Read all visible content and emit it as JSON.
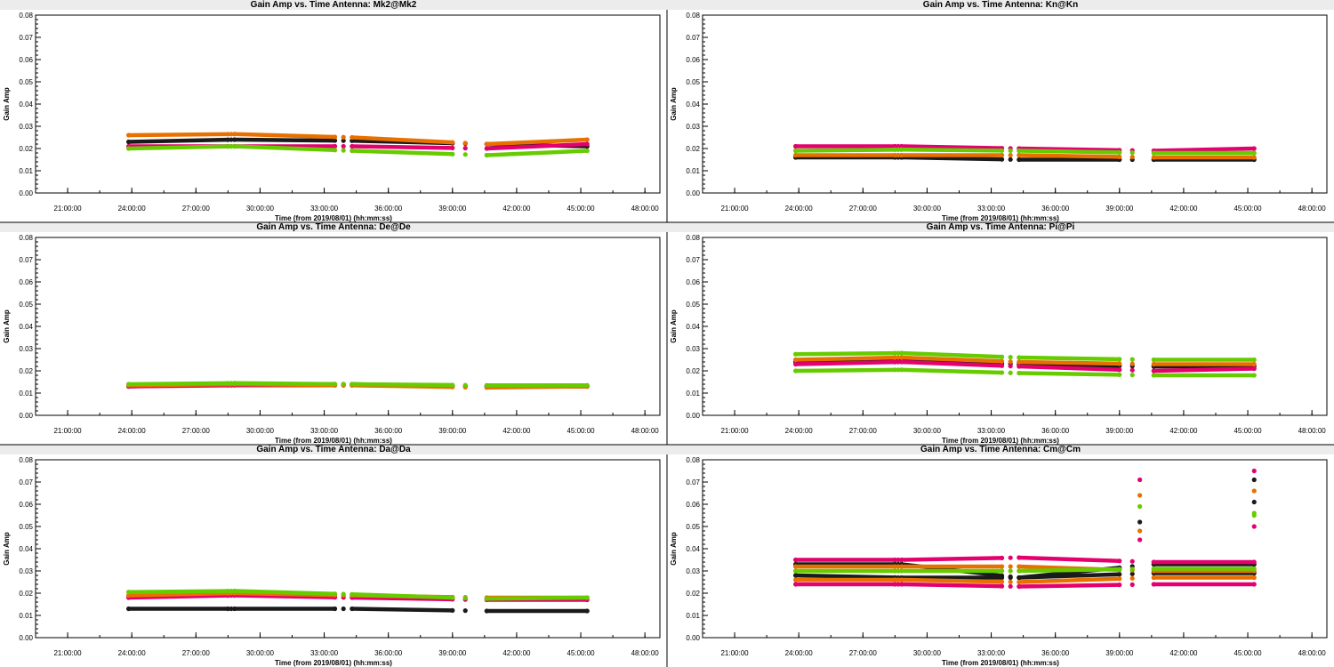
{
  "chart_data": [
    {
      "type": "scatter",
      "title": "Gain Amp vs. Time Antenna: Mk2@Mk2",
      "xlabel": "Time (from 2019/08/01) (hh:mm:ss)",
      "ylabel": "Gain Amp",
      "xlim_hours": [
        19.5,
        48.7
      ],
      "ylim": [
        0,
        0.08
      ],
      "xticks": [
        "21:00:00",
        "24:00:00",
        "27:00:00",
        "30:00:00",
        "33:00:00",
        "36:00:00",
        "39:00:00",
        "42:00:00",
        "45:00:00",
        "48:00:00"
      ],
      "yticks": [
        "0.00",
        "0.01",
        "0.02",
        "0.03",
        "0.04",
        "0.05",
        "0.06",
        "0.07",
        "0.08"
      ],
      "grid": false,
      "segments_hours": [
        [
          23.85,
          28.5
        ],
        [
          28.8,
          33.5
        ],
        [
          34.3,
          39.0
        ],
        [
          40.6,
          45.3
        ]
      ],
      "series": [
        {
          "color": "#1a1a1a",
          "values": [
            0.023,
            0.024,
            0.0235,
            0.022,
            0.021
          ]
        },
        {
          "color": "#e4006e",
          "values": [
            0.021,
            0.021,
            0.021,
            0.02,
            0.022
          ]
        },
        {
          "color": "#e87000",
          "values": [
            0.026,
            0.0265,
            0.025,
            0.022,
            0.024
          ]
        },
        {
          "color": "#66cc00",
          "values": [
            0.02,
            0.021,
            0.019,
            0.017,
            0.019
          ]
        }
      ]
    },
    {
      "type": "scatter",
      "title": "Gain Amp vs. Time Antenna: Kn@Kn",
      "xlabel": "Time (from 2019/08/01) (hh:mm:ss)",
      "ylabel": "Gain Amp",
      "xlim_hours": [
        19.5,
        48.7
      ],
      "ylim": [
        0,
        0.08
      ],
      "xticks": [
        "21:00:00",
        "24:00:00",
        "27:00:00",
        "30:00:00",
        "33:00:00",
        "36:00:00",
        "39:00:00",
        "42:00:00",
        "45:00:00",
        "48:00:00"
      ],
      "yticks": [
        "0.00",
        "0.01",
        "0.02",
        "0.03",
        "0.04",
        "0.05",
        "0.06",
        "0.07",
        "0.08"
      ],
      "grid": false,
      "segments_hours": [
        [
          23.85,
          28.5
        ],
        [
          28.8,
          33.5
        ],
        [
          34.3,
          39.0
        ],
        [
          40.6,
          45.3
        ]
      ],
      "series": [
        {
          "color": "#1a1a1a",
          "values": [
            0.016,
            0.016,
            0.015,
            0.015,
            0.015
          ]
        },
        {
          "color": "#e4006e",
          "values": [
            0.021,
            0.021,
            0.02,
            0.019,
            0.02
          ]
        },
        {
          "color": "#e87000",
          "values": [
            0.017,
            0.017,
            0.017,
            0.016,
            0.016
          ]
        },
        {
          "color": "#66cc00",
          "values": [
            0.019,
            0.0195,
            0.019,
            0.018,
            0.018
          ]
        }
      ]
    },
    {
      "type": "scatter",
      "title": "Gain Amp vs. Time Antenna: De@De",
      "xlabel": "Time (from 2019/08/01) (hh:mm:ss)",
      "ylabel": "Gain Amp",
      "xlim_hours": [
        19.5,
        48.7
      ],
      "ylim": [
        0,
        0.08
      ],
      "xticks": [
        "21:00:00",
        "24:00:00",
        "27:00:00",
        "30:00:00",
        "33:00:00",
        "36:00:00",
        "39:00:00",
        "42:00:00",
        "45:00:00",
        "48:00:00"
      ],
      "yticks": [
        "0.00",
        "0.01",
        "0.02",
        "0.03",
        "0.04",
        "0.05",
        "0.06",
        "0.07",
        "0.08"
      ],
      "grid": false,
      "segments_hours": [
        [
          23.85,
          28.5
        ],
        [
          28.8,
          33.5
        ],
        [
          34.3,
          39.0
        ],
        [
          40.6,
          45.3
        ]
      ],
      "series": [
        {
          "color": "#1a1a1a",
          "values": [
            0.013,
            0.014,
            0.014,
            0.013,
            0.013
          ]
        },
        {
          "color": "#e4006e",
          "values": [
            0.013,
            0.0135,
            0.0135,
            0.013,
            0.013
          ]
        },
        {
          "color": "#e87000",
          "values": [
            0.0135,
            0.014,
            0.0135,
            0.0125,
            0.013
          ]
        },
        {
          "color": "#66cc00",
          "values": [
            0.014,
            0.0145,
            0.014,
            0.0135,
            0.0135
          ]
        }
      ]
    },
    {
      "type": "scatter",
      "title": "Gain Amp vs. Time Antenna: Pi@Pi",
      "xlabel": "Time (from 2019/08/01) (hh:mm:ss)",
      "ylabel": "Gain Amp",
      "xlim_hours": [
        19.5,
        48.7
      ],
      "ylim": [
        0,
        0.08
      ],
      "xticks": [
        "21:00:00",
        "24:00:00",
        "27:00:00",
        "30:00:00",
        "33:00:00",
        "36:00:00",
        "39:00:00",
        "42:00:00",
        "45:00:00",
        "48:00:00"
      ],
      "yticks": [
        "0.00",
        "0.01",
        "0.02",
        "0.03",
        "0.04",
        "0.05",
        "0.06",
        "0.07",
        "0.08"
      ],
      "grid": false,
      "segments_hours": [
        [
          23.85,
          28.5
        ],
        [
          28.8,
          33.5
        ],
        [
          34.3,
          39.0
        ],
        [
          40.6,
          45.3
        ]
      ],
      "series": [
        {
          "color": "#1a1a1a",
          "values": [
            0.024,
            0.025,
            0.023,
            0.022,
            0.022
          ]
        },
        {
          "color": "#e4006e",
          "values": [
            0.023,
            0.024,
            0.022,
            0.02,
            0.021
          ]
        },
        {
          "color": "#e87000",
          "values": [
            0.025,
            0.026,
            0.024,
            0.023,
            0.023
          ]
        },
        {
          "color": "#66cc00",
          "values": [
            0.0275,
            0.028,
            0.026,
            0.025,
            0.025
          ]
        },
        {
          "color": "#66cc00",
          "values": [
            0.02,
            0.0205,
            0.019,
            0.018,
            0.018
          ]
        }
      ]
    },
    {
      "type": "scatter",
      "title": "Gain Amp vs. Time Antenna: Da@Da",
      "xlabel": "Time (from 2019/08/01) (hh:mm:ss)",
      "ylabel": "Gain Amp",
      "xlim_hours": [
        19.5,
        48.7
      ],
      "ylim": [
        0,
        0.08
      ],
      "xticks": [
        "21:00:00",
        "24:00:00",
        "27:00:00",
        "30:00:00",
        "33:00:00",
        "36:00:00",
        "39:00:00",
        "42:00:00",
        "45:00:00",
        "48:00:00"
      ],
      "yticks": [
        "0.00",
        "0.01",
        "0.02",
        "0.03",
        "0.04",
        "0.05",
        "0.06",
        "0.07",
        "0.08"
      ],
      "grid": false,
      "segments_hours": [
        [
          23.85,
          28.5
        ],
        [
          28.8,
          33.5
        ],
        [
          34.3,
          39.0
        ],
        [
          40.6,
          45.3
        ]
      ],
      "series": [
        {
          "color": "#1a1a1a",
          "values": [
            0.013,
            0.013,
            0.013,
            0.012,
            0.012
          ]
        },
        {
          "color": "#e4006e",
          "values": [
            0.018,
            0.019,
            0.018,
            0.017,
            0.017
          ]
        },
        {
          "color": "#e87000",
          "values": [
            0.019,
            0.02,
            0.019,
            0.018,
            0.018
          ]
        },
        {
          "color": "#66cc00",
          "values": [
            0.0205,
            0.021,
            0.0195,
            0.0175,
            0.018
          ]
        }
      ]
    },
    {
      "type": "scatter",
      "title": "Gain Amp vs. Time Antenna: Cm@Cm",
      "xlabel": "Time (from 2019/08/01) (hh:mm:ss)",
      "ylabel": "Gain Amp",
      "xlim_hours": [
        19.5,
        48.7
      ],
      "ylim": [
        0,
        0.08
      ],
      "xticks": [
        "21:00:00",
        "24:00:00",
        "27:00:00",
        "30:00:00",
        "33:00:00",
        "36:00:00",
        "39:00:00",
        "42:00:00",
        "45:00:00",
        "48:00:00"
      ],
      "yticks": [
        "0.00",
        "0.01",
        "0.02",
        "0.03",
        "0.04",
        "0.05",
        "0.06",
        "0.07",
        "0.08"
      ],
      "grid": false,
      "segments_hours": [
        [
          23.85,
          28.5
        ],
        [
          28.8,
          33.5
        ],
        [
          34.3,
          39.0
        ],
        [
          40.6,
          45.3
        ]
      ],
      "series": [
        {
          "color": "#1a1a1a",
          "values": [
            0.033,
            0.033,
            0.027,
            0.033,
            0.033
          ]
        },
        {
          "color": "#1a1a1a",
          "values": [
            0.028,
            0.027,
            0.027,
            0.029,
            0.029
          ]
        },
        {
          "color": "#e4006e",
          "values": [
            0.035,
            0.035,
            0.036,
            0.034,
            0.034
          ]
        },
        {
          "color": "#e4006e",
          "values": [
            0.024,
            0.024,
            0.023,
            0.024,
            0.024
          ]
        },
        {
          "color": "#e87000",
          "values": [
            0.032,
            0.032,
            0.032,
            0.03,
            0.03
          ]
        },
        {
          "color": "#e87000",
          "values": [
            0.026,
            0.026,
            0.025,
            0.027,
            0.027
          ]
        },
        {
          "color": "#66cc00",
          "values": [
            0.03,
            0.03,
            0.03,
            0.031,
            0.031
          ]
        }
      ],
      "outliers": [
        {
          "x": 39.95,
          "y": 0.071,
          "color": "#e4006e"
        },
        {
          "x": 39.95,
          "y": 0.064,
          "color": "#e87000"
        },
        {
          "x": 39.95,
          "y": 0.059,
          "color": "#66cc00"
        },
        {
          "x": 39.95,
          "y": 0.052,
          "color": "#1a1a1a"
        },
        {
          "x": 39.95,
          "y": 0.048,
          "color": "#e87000"
        },
        {
          "x": 39.95,
          "y": 0.044,
          "color": "#e4006e"
        },
        {
          "x": 45.3,
          "y": 0.075,
          "color": "#e4006e"
        },
        {
          "x": 45.3,
          "y": 0.071,
          "color": "#1a1a1a"
        },
        {
          "x": 45.3,
          "y": 0.066,
          "color": "#e87000"
        },
        {
          "x": 45.3,
          "y": 0.061,
          "color": "#1a1a1a"
        },
        {
          "x": 45.3,
          "y": 0.056,
          "color": "#66cc00"
        },
        {
          "x": 45.3,
          "y": 0.055,
          "color": "#66cc00"
        },
        {
          "x": 45.3,
          "y": 0.05,
          "color": "#e4006e"
        }
      ]
    }
  ]
}
